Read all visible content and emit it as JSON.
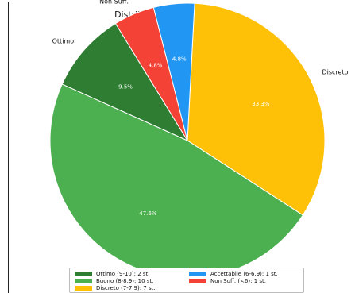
{
  "chart_data": {
    "type": "pie",
    "title": "Distribuzione Fasce di Livello",
    "slices": [
      {
        "label": "Discreto",
        "value": 33.3,
        "pct_label": "33.3%",
        "color": "#FFC107"
      },
      {
        "label": "Buono",
        "value": 47.6,
        "pct_label": "47.6%",
        "color": "#4CAF50"
      },
      {
        "label": "Ottimo",
        "value": 9.5,
        "pct_label": "9.5%",
        "color": "#2E7D32"
      },
      {
        "label": "Non Suff.",
        "value": 4.8,
        "pct_label": "4.8%",
        "color": "#F44336"
      },
      {
        "label": "Accettabile",
        "value": 4.8,
        "pct_label": "4.8%",
        "color": "#2196F3"
      }
    ],
    "legend": {
      "position": "bottom",
      "entries": [
        {
          "label": "Ottimo (9-10): 2 st.",
          "color": "#2E7D32"
        },
        {
          "label": "Accettabile (6-6.9): 1 st.",
          "color": "#2196F3"
        },
        {
          "label": "Buono (8-8.9): 10 st.",
          "color": "#4CAF50"
        },
        {
          "label": "Non Suff. (<6): 1 st.",
          "color": "#F44336"
        },
        {
          "label": "Discreto (7-7.9): 7 st.",
          "color": "#FFC107"
        }
      ]
    }
  }
}
